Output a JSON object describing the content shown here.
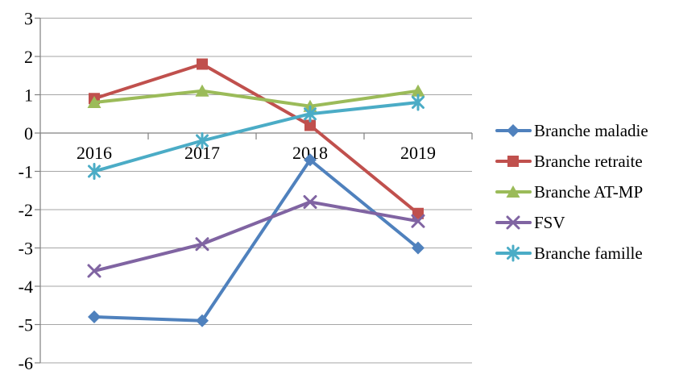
{
  "chart_data": {
    "type": "line",
    "title": "",
    "xlabel": "",
    "ylabel": "",
    "categories": [
      "2016",
      "2017",
      "2018",
      "2019"
    ],
    "series": [
      {
        "name": "Branche maladie",
        "color": "#4F81BD",
        "marker": "diamond",
        "values": [
          -4.8,
          -4.9,
          -0.7,
          -3.0
        ]
      },
      {
        "name": "Branche retraite",
        "color": "#C0504D",
        "marker": "square",
        "values": [
          0.9,
          1.8,
          0.2,
          -2.1
        ]
      },
      {
        "name": "Branche AT-MP",
        "color": "#9BBB59",
        "marker": "triangle",
        "values": [
          0.8,
          1.1,
          0.7,
          1.1
        ]
      },
      {
        "name": "FSV",
        "color": "#8064A2",
        "marker": "x",
        "values": [
          -3.6,
          -2.9,
          -1.8,
          -2.3
        ]
      },
      {
        "name": "Branche famille",
        "color": "#4BACC6",
        "marker": "asterisk",
        "values": [
          -1.0,
          -0.2,
          0.5,
          0.8
        ]
      }
    ],
    "y_axis": {
      "min": -6,
      "max": 3,
      "step": 1,
      "tick_labels": [
        "3",
        "2",
        "1",
        "0",
        "-1",
        "-2",
        "-3",
        "-4",
        "-5",
        "-6"
      ]
    },
    "grid": true,
    "legend_position": "right",
    "colors": {
      "gridline": "#A6A6A6",
      "axis": "#808080",
      "text": "#000000",
      "background": "#FFFFFF"
    }
  }
}
